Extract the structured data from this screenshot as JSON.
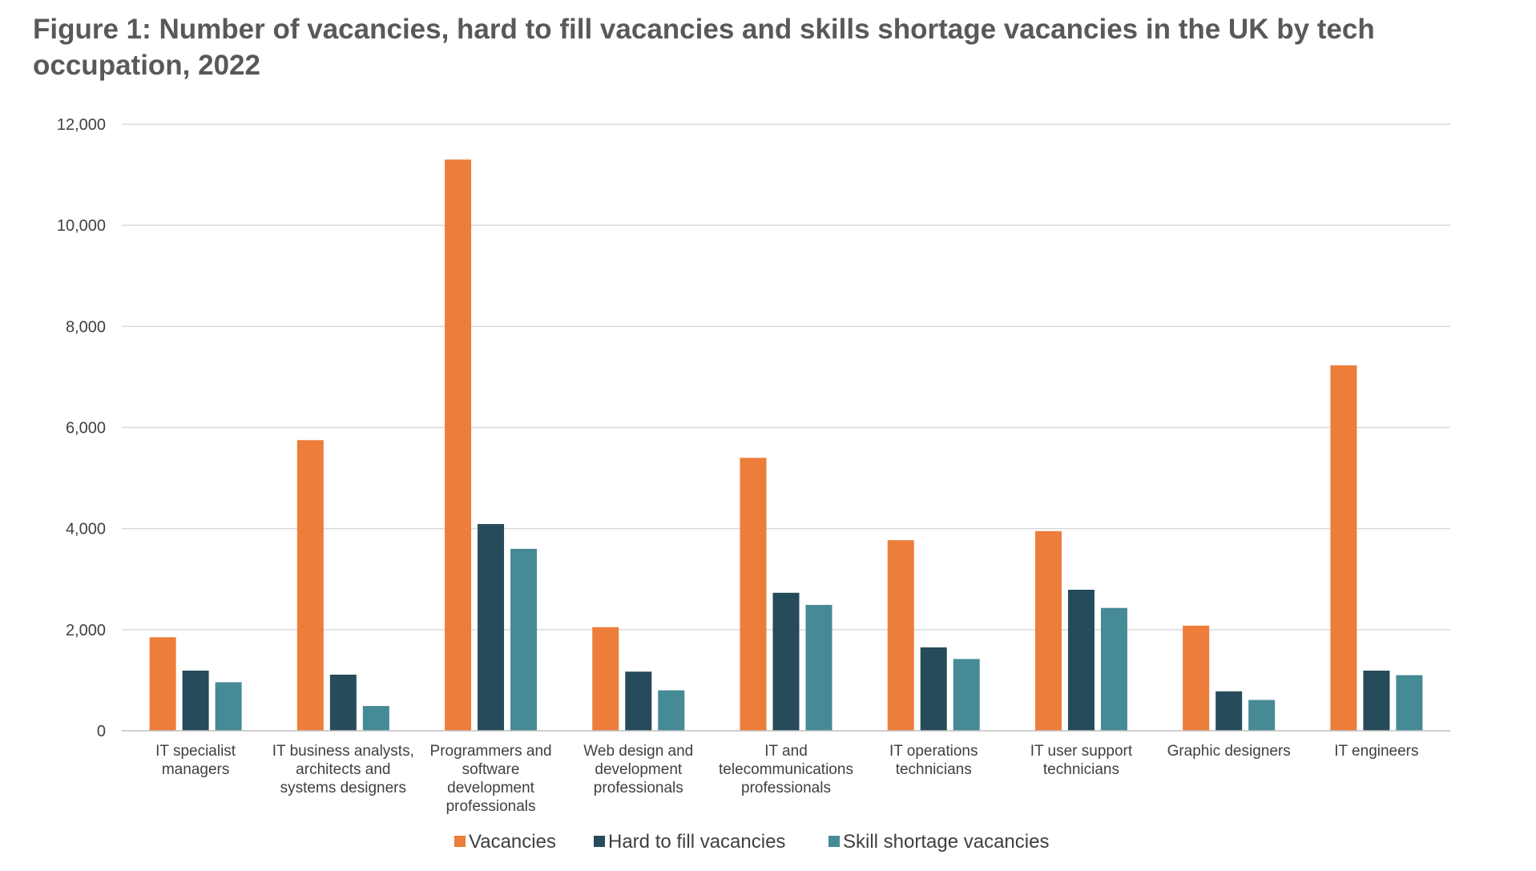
{
  "title": "Figure 1: Number of vacancies, hard to fill vacancies and skills shortage vacancies in the UK by tech occupation, 2022",
  "chart_data": {
    "type": "bar",
    "title": "Figure 1: Number of vacancies, hard to fill vacancies and skills shortage vacancies in the UK by tech occupation, 2022",
    "xlabel": "",
    "ylabel": "",
    "ylim": [
      0,
      12000
    ],
    "yticks": [
      0,
      2000,
      4000,
      6000,
      8000,
      10000,
      12000
    ],
    "ytick_labels": [
      "0",
      "2,000",
      "4,000",
      "6,000",
      "8,000",
      "10,000",
      "12,000"
    ],
    "grid": true,
    "legend_position": "bottom",
    "categories": [
      "IT specialist managers",
      "IT business analysts, architects and systems designers",
      "Programmers and software development professionals",
      "Web design and development professionals",
      "IT and telecommunications professionals",
      "IT operations technicians",
      "IT user support technicians",
      "Graphic designers",
      "IT engineers"
    ],
    "category_label_lines": [
      [
        "IT specialist",
        "managers"
      ],
      [
        "IT business analysts,",
        "architects and",
        "systems designers"
      ],
      [
        "Programmers and",
        "software",
        "development",
        "professionals"
      ],
      [
        "Web design and",
        "development",
        "professionals"
      ],
      [
        "IT and",
        "telecommunications",
        "professionals"
      ],
      [
        "IT operations",
        "technicians"
      ],
      [
        "IT user support",
        "technicians"
      ],
      [
        "Graphic designers"
      ],
      [
        "IT engineers"
      ]
    ],
    "series": [
      {
        "name": "Vacancies",
        "color": "#ed7d3a",
        "values": [
          1850,
          5750,
          11300,
          2050,
          5400,
          3770,
          3950,
          2080,
          7230
        ]
      },
      {
        "name": "Hard to fill vacancies",
        "color": "#264b5a",
        "values": [
          1190,
          1110,
          4090,
          1170,
          2730,
          1650,
          2790,
          780,
          1190
        ]
      },
      {
        "name": "Skill shortage vacancies",
        "color": "#468a96",
        "values": [
          960,
          490,
          3600,
          800,
          2490,
          1420,
          2430,
          610,
          1100
        ]
      }
    ]
  }
}
